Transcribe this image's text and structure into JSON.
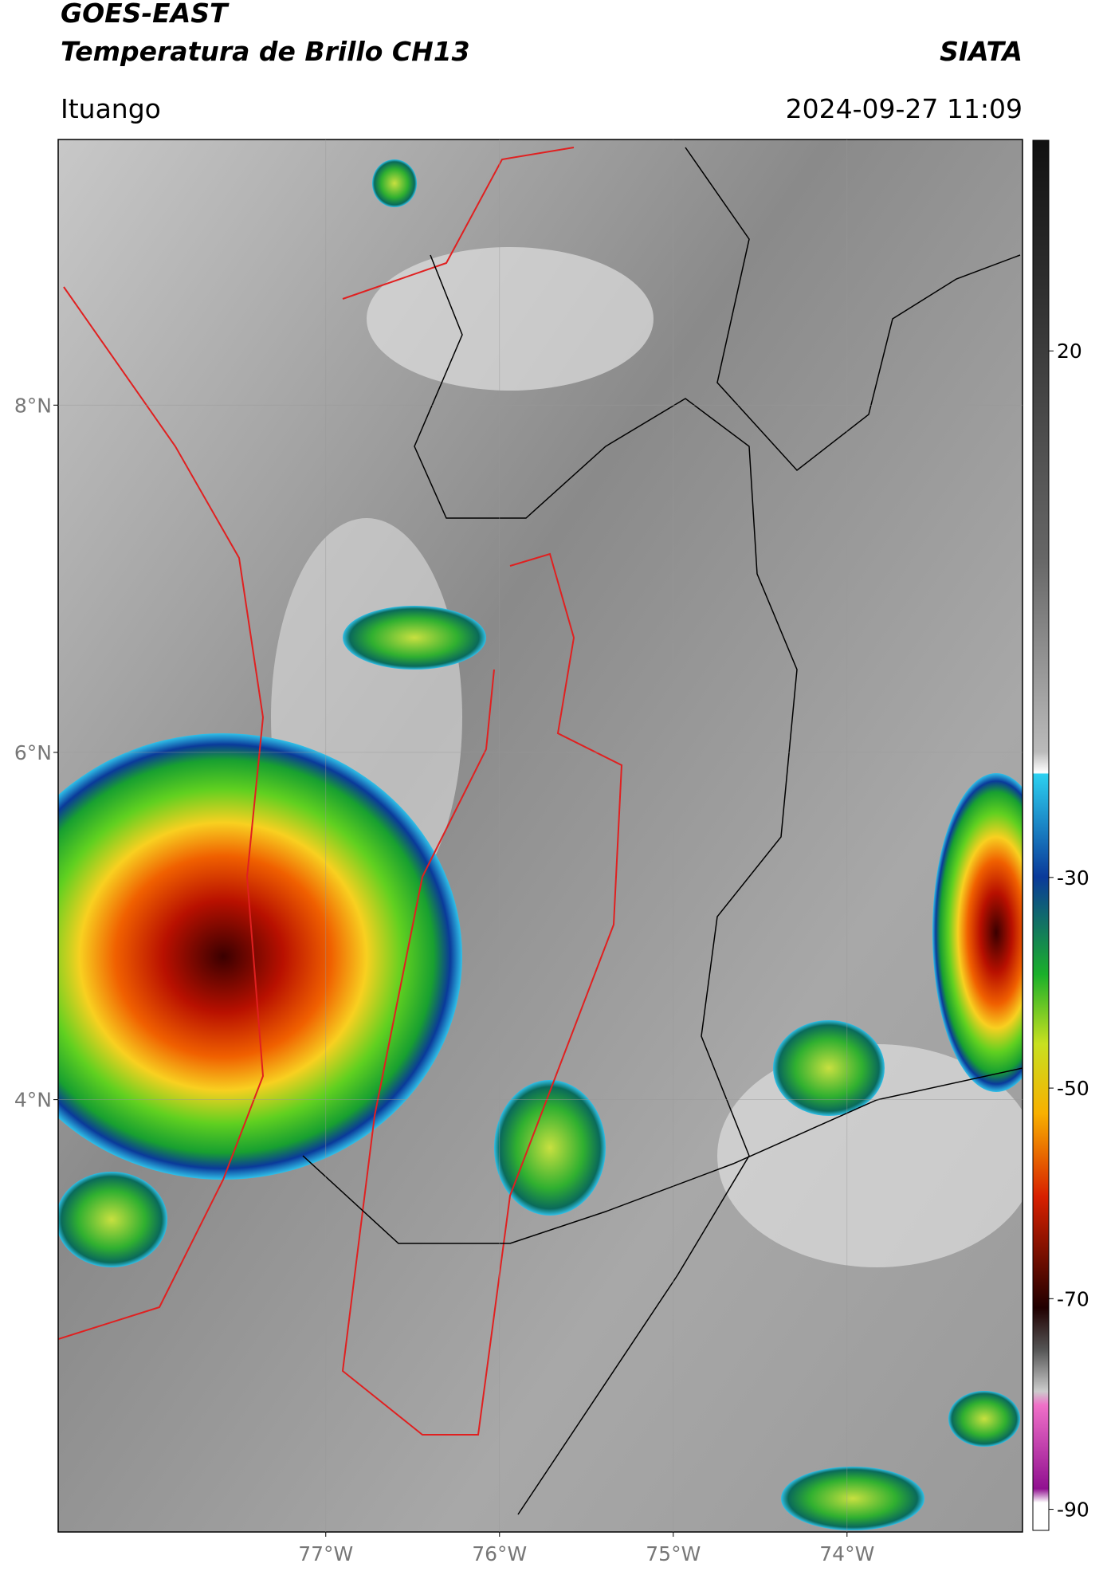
{
  "header": {
    "title": "GOES-EAST",
    "subtitle": "Temperatura de Brillo CH13",
    "agency": "SIATA",
    "location": "Ituango",
    "datetime": "2024-09-27 11:09"
  },
  "map": {
    "latlim": [
      1.51,
      9.53
    ],
    "lonlim": [
      -78.54,
      -72.99
    ],
    "lat_ticks": [
      {
        "value": 8,
        "label": "8°N"
      },
      {
        "value": 6,
        "label": "6°N"
      },
      {
        "value": 4,
        "label": "4°N"
      }
    ],
    "lon_ticks": [
      {
        "value": -77,
        "label": "77°W"
      },
      {
        "value": -76,
        "label": "76°W"
      },
      {
        "value": -75,
        "label": "75°W"
      },
      {
        "value": -74,
        "label": "74°W"
      }
    ]
  },
  "colorbar": {
    "clim": [
      40,
      -92
    ],
    "ticks": [
      20,
      -30,
      -50,
      -70,
      -90
    ]
  }
}
